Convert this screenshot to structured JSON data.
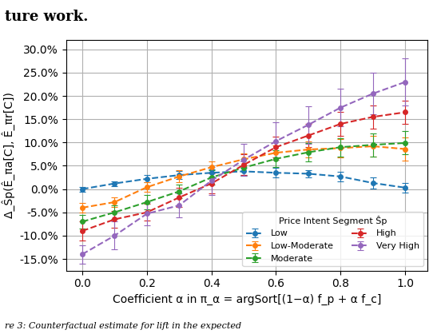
{
  "chart_data": {
    "type": "line",
    "annotations": [
      "ture work.",
      "re 3: Counterfactual estimate for lift in the expected"
    ],
    "xlabel": "Coefficient α in π_α = argSort[(1−α) f_p + α f_c]",
    "ylabel": "Δ_Ŝp(Ê_πa[C], Ê_πr[C])",
    "legend_title": "Price Intent Segment Ŝp",
    "x": [
      0.0,
      0.1,
      0.2,
      0.3,
      0.4,
      0.5,
      0.6,
      0.7,
      0.8,
      0.9,
      1.0
    ],
    "series": [
      {
        "name": "Low",
        "values": [
          0.0,
          0.012,
          0.022,
          0.03,
          0.035,
          0.038,
          0.035,
          0.033,
          0.027,
          0.013,
          0.003
        ],
        "errors": [
          0.005,
          0.005,
          0.008,
          0.008,
          0.008,
          0.008,
          0.01,
          0.008,
          0.01,
          0.012,
          0.01
        ]
      },
      {
        "name": "Low-Moderate",
        "values": [
          -0.04,
          -0.028,
          0.004,
          0.027,
          0.047,
          0.064,
          0.078,
          0.085,
          0.088,
          0.092,
          0.086
        ],
        "errors": [
          0.01,
          0.01,
          0.01,
          0.013,
          0.012,
          0.013,
          0.015,
          0.017,
          0.02,
          0.022,
          0.025
        ]
      },
      {
        "name": "Moderate",
        "values": [
          -0.07,
          -0.05,
          -0.028,
          -0.005,
          0.025,
          0.046,
          0.065,
          0.079,
          0.09,
          0.095,
          0.099
        ],
        "errors": [
          0.015,
          0.015,
          0.015,
          0.015,
          0.015,
          0.018,
          0.018,
          0.02,
          0.02,
          0.025,
          0.025
        ]
      },
      {
        "name": "High",
        "values": [
          -0.09,
          -0.065,
          -0.05,
          -0.018,
          0.012,
          0.052,
          0.09,
          0.115,
          0.14,
          0.155,
          0.165
        ],
        "errors": [
          0.02,
          0.018,
          0.018,
          0.02,
          0.022,
          0.022,
          0.022,
          0.025,
          0.025,
          0.025,
          0.025
        ]
      },
      {
        "name": "Very High",
        "values": [
          -0.14,
          -0.1,
          -0.053,
          -0.035,
          0.018,
          0.063,
          0.103,
          0.138,
          0.175,
          0.205,
          0.23
        ],
        "errors": [
          0.02,
          0.03,
          0.025,
          0.025,
          0.03,
          0.035,
          0.04,
          0.04,
          0.04,
          0.045,
          0.05
        ]
      }
    ],
    "marker": "o",
    "line_style": "dashed",
    "xlim": [
      -0.05,
      1.07
    ],
    "xticks": [
      0.0,
      0.2,
      0.4,
      0.6,
      0.8,
      1.0
    ],
    "ylim": [
      -0.175,
      0.32
    ],
    "yticks": [
      {
        "value": -0.15,
        "label": "-15.0%"
      },
      {
        "value": -0.1,
        "label": "-10.0%"
      },
      {
        "value": -0.05,
        "label": "-5.0%"
      },
      {
        "value": 0.0,
        "label": "0.0%"
      },
      {
        "value": 0.05,
        "label": "5.0%"
      },
      {
        "value": 0.1,
        "label": "10.0%"
      },
      {
        "value": 0.15,
        "label": "15.0%"
      },
      {
        "value": 0.2,
        "label": "20.0%"
      },
      {
        "value": 0.25,
        "label": "25.0%"
      },
      {
        "value": 0.3,
        "label": "30.0%"
      }
    ],
    "grid": true,
    "legend": "lower right"
  }
}
